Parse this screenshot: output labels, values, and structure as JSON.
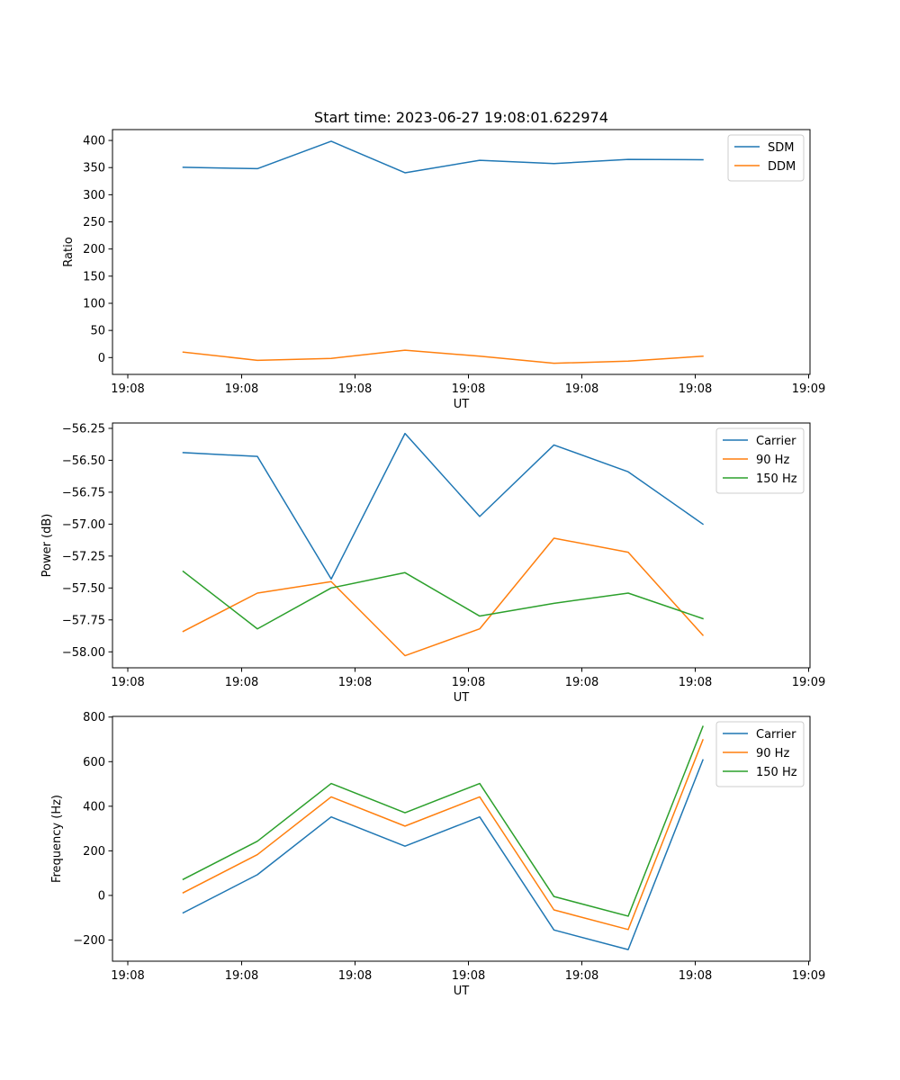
{
  "figure_title": "Start time: 2023-06-27 19:08:01.622974",
  "colors": {
    "blue": "#1f77b4",
    "orange": "#ff7f0e",
    "green": "#2ca02c"
  },
  "chart_data": [
    {
      "type": "line",
      "title": "Start time: 2023-06-27 19:08:01.622974",
      "xlabel": "UT",
      "ylabel": "Ratio",
      "x_tick_labels": [
        "19:08",
        "19:08",
        "19:08",
        "19:08",
        "19:08",
        "19:08",
        "19:09"
      ],
      "y_ticks": [
        0,
        50,
        100,
        150,
        200,
        250,
        300,
        350,
        400
      ],
      "y_tick_labels": [
        "0",
        "50",
        "100",
        "150",
        "200",
        "250",
        "300",
        "350",
        "400"
      ],
      "ylim": [
        -31,
        420
      ],
      "legend_position": "top-right",
      "series": [
        {
          "name": "SDM",
          "color": "#1f77b4",
          "values": [
            350.5,
            348,
            398.5,
            340.5,
            363.5,
            357.5,
            365,
            364.5
          ]
        },
        {
          "name": "DDM",
          "color": "#ff7f0e",
          "values": [
            10,
            -5,
            -1.5,
            13.5,
            2.5,
            -10.5,
            -6.5,
            2.5
          ]
        }
      ]
    },
    {
      "type": "line",
      "title": "",
      "xlabel": "UT",
      "ylabel": "Power (dB)",
      "x_tick_labels": [
        "19:08",
        "19:08",
        "19:08",
        "19:08",
        "19:08",
        "19:08",
        "19:09"
      ],
      "y_ticks": [
        -58.0,
        -57.75,
        -57.5,
        -57.25,
        -57.0,
        -56.75,
        -56.5,
        -56.25
      ],
      "y_tick_labels": [
        "−58.00",
        "−57.75",
        "−57.50",
        "−57.25",
        "−57.00",
        "−56.75",
        "−56.50",
        "−56.25"
      ],
      "ylim": [
        -58.125,
        -56.208
      ],
      "legend_position": "top-right",
      "series": [
        {
          "name": "Carrier",
          "color": "#1f77b4",
          "values": [
            -56.44,
            -56.47,
            -57.43,
            -56.29,
            -56.94,
            -56.38,
            -56.59,
            -57.0
          ]
        },
        {
          "name": "90 Hz",
          "color": "#ff7f0e",
          "values": [
            -57.84,
            -57.54,
            -57.45,
            -58.03,
            -57.82,
            -57.11,
            -57.22,
            -57.87
          ]
        },
        {
          "name": "150 Hz",
          "color": "#2ca02c",
          "values": [
            -57.37,
            -57.82,
            -57.5,
            -57.38,
            -57.72,
            -57.62,
            -57.54,
            -57.74
          ]
        }
      ]
    },
    {
      "type": "line",
      "title": "",
      "xlabel": "UT",
      "ylabel": "Frequency (Hz)",
      "x_tick_labels": [
        "19:08",
        "19:08",
        "19:08",
        "19:08",
        "19:08",
        "19:08",
        "19:09"
      ],
      "y_ticks": [
        -200,
        0,
        200,
        400,
        600,
        800
      ],
      "y_tick_labels": [
        "−200",
        "0",
        "200",
        "400",
        "600",
        "800"
      ],
      "ylim": [
        -295,
        803
      ],
      "legend_position": "top-right",
      "series": [
        {
          "name": "Carrier",
          "color": "#1f77b4",
          "values": [
            -78,
            93,
            352,
            221,
            352,
            -155,
            -243,
            608
          ]
        },
        {
          "name": "90 Hz",
          "color": "#ff7f0e",
          "values": [
            12,
            183,
            442,
            311,
            442,
            -65,
            -153,
            698
          ]
        },
        {
          "name": "150 Hz",
          "color": "#2ca02c",
          "values": [
            72,
            243,
            502,
            371,
            502,
            -5,
            -93,
            758
          ]
        }
      ]
    }
  ]
}
